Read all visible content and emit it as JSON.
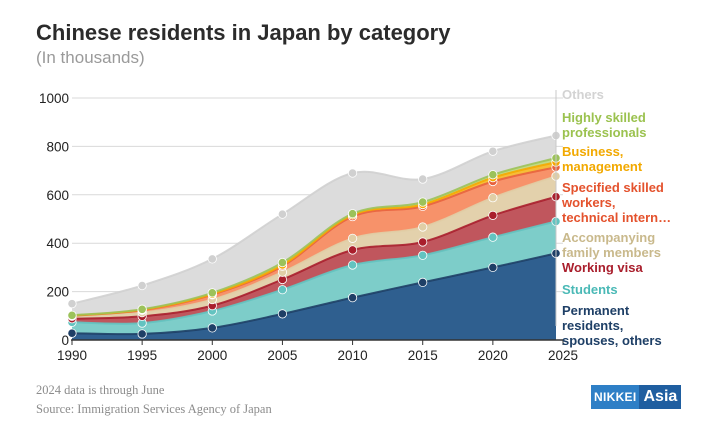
{
  "header": {
    "title": "Chinese residents in Japan by category",
    "subtitle": "(In thousands)"
  },
  "footer": {
    "note": "2024 data is through June",
    "source": "Source: Immigration Services Agency of Japan",
    "logo_part1": "NIKKEI",
    "logo_part2": "Asia"
  },
  "chart_data": {
    "type": "area",
    "stacked": true,
    "title": "Chinese residents in Japan by category",
    "subtitle": "(In thousands)",
    "xlabel": "",
    "ylabel": "",
    "x": [
      1990,
      1995,
      2000,
      2005,
      2010,
      2015,
      2020,
      2024.5
    ],
    "x_ticks": [
      1990,
      1995,
      2000,
      2005,
      2010,
      2015,
      2020,
      2025
    ],
    "y_ticks": [
      0,
      200,
      400,
      600,
      800,
      1000
    ],
    "xlim": [
      1990,
      2025
    ],
    "ylim": [
      0,
      1000
    ],
    "grid": true,
    "legend_position": "right",
    "series": [
      {
        "name": "Permanent residents, spouses, others",
        "label_lines": [
          "Permanent",
          "residents,",
          "spouses, others"
        ],
        "color": "#2f5f8f",
        "dot": "#1e3f66",
        "values": [
          28,
          25,
          50,
          108,
          175,
          238,
          300,
          358
        ]
      },
      {
        "name": "Students",
        "label_lines": [
          "Students"
        ],
        "color": "#7dcdc9",
        "dot": "#63c3c0",
        "values": [
          45,
          45,
          70,
          100,
          135,
          112,
          125,
          132
        ]
      },
      {
        "name": "Working visa",
        "label_lines": [
          "Working visa"
        ],
        "color": "#c0565d",
        "dot": "#a91e2c",
        "values": [
          15,
          28,
          22,
          42,
          62,
          55,
          90,
          102
        ]
      },
      {
        "name": "Accompanying family members",
        "label_lines": [
          "Accompanying",
          "family members"
        ],
        "color": "#e3d1ac",
        "dot": "#e0cea6",
        "values": [
          10,
          15,
          25,
          30,
          48,
          62,
          73,
          85
        ]
      },
      {
        "name": "Specified skilled workers, technical intern...",
        "label_lines": [
          "Specified skilled",
          "workers,",
          "technical intern…"
        ],
        "color": "#f7926a",
        "dot": "#e8623e",
        "values": [
          2,
          10,
          20,
          25,
          90,
          85,
          67,
          37
        ]
      },
      {
        "name": "Business, management",
        "label_lines": [
          "Business,",
          "management"
        ],
        "color": "#f6bd38",
        "dot": "#f5a800",
        "values": [
          1,
          2,
          3,
          5,
          7,
          8,
          16,
          21
        ]
      },
      {
        "name": "Highly skilled professionals",
        "label_lines": [
          "Highly skilled",
          "professionals"
        ],
        "color": "#c2da84",
        "dot": "#9cc25a",
        "values": [
          1,
          2,
          5,
          10,
          5,
          10,
          12,
          17
        ]
      },
      {
        "name": "Others",
        "label_lines": [
          "Others"
        ],
        "color": "#dcdcdc",
        "dot": "#d0d0d0",
        "values": [
          48,
          98,
          140,
          200,
          168,
          95,
          97,
          93
        ]
      }
    ]
  }
}
